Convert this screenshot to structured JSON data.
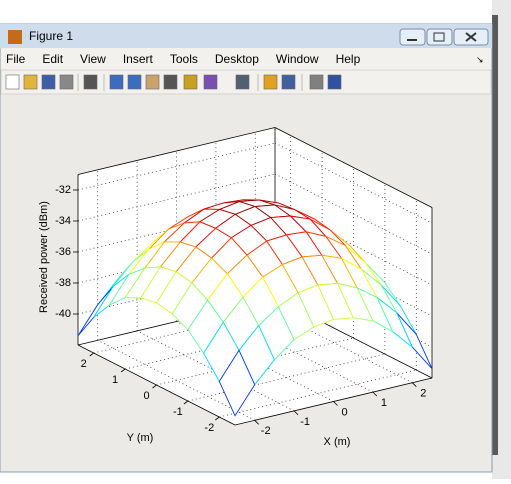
{
  "window": {
    "title": "Figure 1",
    "menu": [
      "File",
      "Edit",
      "View",
      "Insert",
      "Tools",
      "Desktop",
      "Window",
      "Help"
    ]
  },
  "chart_data": {
    "type": "mesh",
    "xlabel": "X (m)",
    "ylabel": "Y (m)",
    "zlabel": "Received power (dBm)",
    "x": [
      -2.5,
      -2,
      -1.5,
      -1,
      -0.5,
      0,
      0.5,
      1,
      1.5,
      2,
      2.5
    ],
    "y": [
      -2.5,
      -2,
      -1.5,
      -1,
      -0.5,
      0,
      0.5,
      1,
      1.5,
      2,
      2.5
    ],
    "z": [
      [
        -41.4,
        -39.7,
        -38.4,
        -37.4,
        -36.9,
        -36.7,
        -36.9,
        -37.4,
        -38.4,
        -39.7,
        -41.4
      ],
      [
        -39.7,
        -38,
        -36.7,
        -35.8,
        -35.2,
        -35,
        -35.2,
        -35.8,
        -36.7,
        -38,
        -39.7
      ],
      [
        -38.4,
        -36.7,
        -35.4,
        -34.4,
        -33.9,
        -33.7,
        -33.9,
        -34.4,
        -35.4,
        -36.7,
        -38.4
      ],
      [
        -37.4,
        -35.8,
        -34.4,
        -33.5,
        -32.9,
        -32.8,
        -32.9,
        -33.5,
        -34.4,
        -35.8,
        -37.4
      ],
      [
        -36.9,
        -35.2,
        -33.9,
        -32.9,
        -32.4,
        -32.2,
        -32.4,
        -32.9,
        -33.9,
        -35.2,
        -36.9
      ],
      [
        -36.7,
        -35,
        -33.7,
        -32.8,
        -32.2,
        -32,
        -32.2,
        -32.8,
        -33.7,
        -35,
        -36.7
      ],
      [
        -36.9,
        -35.2,
        -33.9,
        -32.9,
        -32.4,
        -32.2,
        -32.4,
        -32.9,
        -33.9,
        -35.2,
        -36.9
      ],
      [
        -37.4,
        -35.8,
        -34.4,
        -33.5,
        -32.9,
        -32.8,
        -32.9,
        -33.5,
        -34.4,
        -35.8,
        -37.4
      ],
      [
        -38.4,
        -36.7,
        -35.4,
        -34.4,
        -33.9,
        -33.7,
        -33.9,
        -34.4,
        -35.4,
        -36.7,
        -38.4
      ],
      [
        -39.7,
        -38,
        -36.7,
        -35.8,
        -35.2,
        -35,
        -35.2,
        -35.8,
        -36.7,
        -38,
        -39.7
      ],
      [
        -41.4,
        -39.7,
        -38.4,
        -37.4,
        -36.9,
        -36.7,
        -36.9,
        -37.4,
        -38.4,
        -39.7,
        -41.4
      ]
    ],
    "xlim": [
      -2.5,
      2.5
    ],
    "ylim": [
      -2.5,
      2.5
    ],
    "zlim": [
      -42,
      -31
    ],
    "xticks": [
      -2,
      -1,
      0,
      1,
      2
    ],
    "yticks": [
      -2,
      -1,
      0,
      1,
      2
    ],
    "zticks": [
      -40,
      -38,
      -36,
      -34,
      -32
    ],
    "grid": true,
    "colormap": "jet"
  }
}
